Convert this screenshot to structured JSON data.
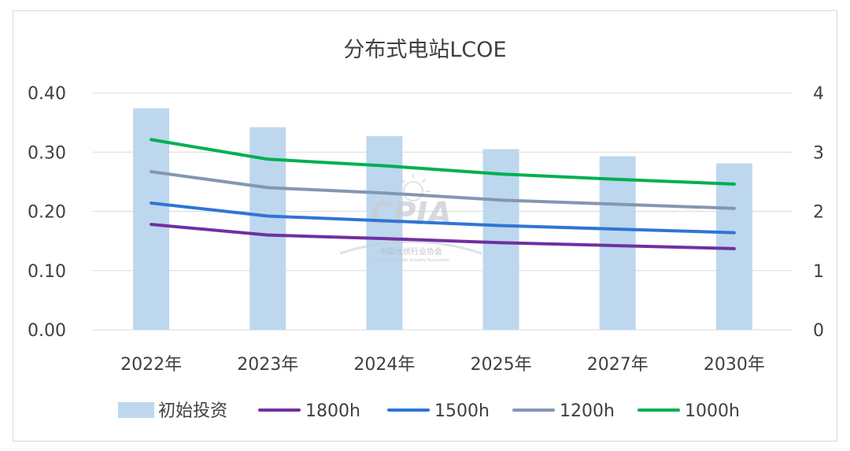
{
  "chart_data": {
    "type": "bar",
    "title": "分布式电站LCOE",
    "categories": [
      "2022年",
      "2023年",
      "2024年",
      "2025年",
      "2027年",
      "2030年"
    ],
    "bar_series": {
      "name": "初始投资",
      "axis": "right",
      "values": [
        3.74,
        3.42,
        3.27,
        3.05,
        2.93,
        2.81
      ],
      "color": "#bdd7ee"
    },
    "series": [
      {
        "name": "1800h",
        "axis": "left",
        "values": [
          0.178,
          0.16,
          0.154,
          0.147,
          0.142,
          0.137
        ],
        "color": "#7030a0"
      },
      {
        "name": "1500h",
        "axis": "left",
        "values": [
          0.214,
          0.192,
          0.184,
          0.176,
          0.17,
          0.164
        ],
        "color": "#2e75d6"
      },
      {
        "name": "1200h",
        "axis": "left",
        "values": [
          0.267,
          0.24,
          0.231,
          0.219,
          0.212,
          0.205
        ],
        "color": "#8497b0"
      },
      {
        "name": "1000h",
        "axis": "left",
        "values": [
          0.321,
          0.288,
          0.277,
          0.263,
          0.254,
          0.246
        ],
        "color": "#00b050"
      }
    ],
    "ylim_left": [
      0,
      0.4
    ],
    "yticks_left": [
      "0.00",
      "0.10",
      "0.20",
      "0.30",
      "0.40"
    ],
    "ylim_right": [
      0,
      4
    ],
    "yticks_right": [
      "0",
      "1",
      "2",
      "3",
      "4"
    ],
    "grid": true,
    "legend": "bottom"
  },
  "watermark": {
    "logo": "CPIA",
    "org_cn": "中国光伏行业协会",
    "org_en": "China Photovoltaic Industry Association"
  }
}
